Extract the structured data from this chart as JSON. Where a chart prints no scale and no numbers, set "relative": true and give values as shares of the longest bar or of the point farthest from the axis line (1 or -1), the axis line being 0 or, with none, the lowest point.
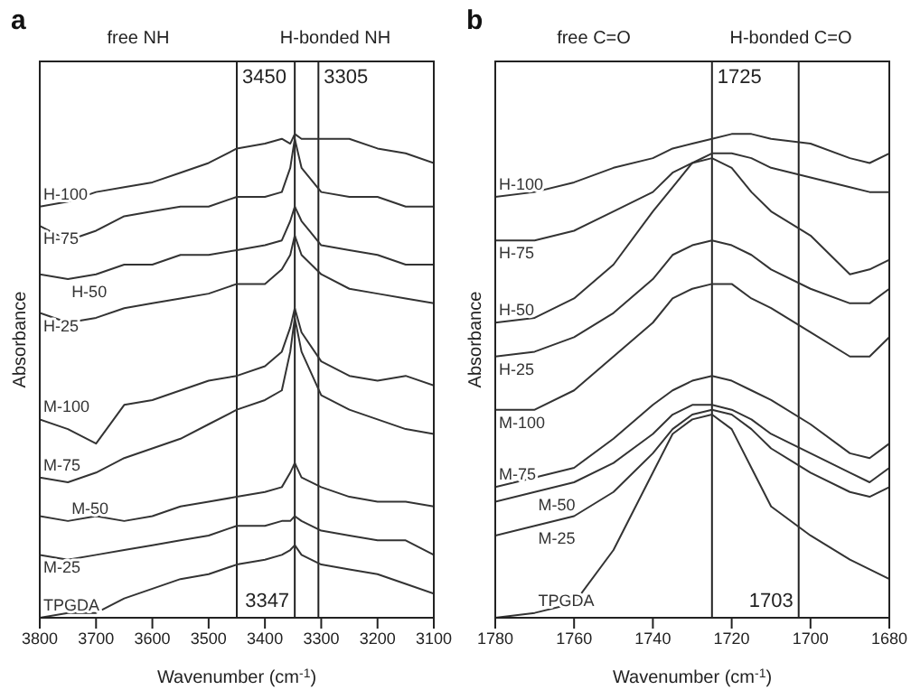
{
  "chart_data": [
    {
      "type": "line",
      "title": "a",
      "xlabel": "Wavenumber (cm$^{-1}$)",
      "ylabel": "Absorbance",
      "relative": true,
      "legend": false,
      "grid": false,
      "marker": "none",
      "line_style": "solid",
      "x": [
        3800,
        3750,
        3700,
        3650,
        3600,
        3550,
        3500,
        3450,
        3400,
        3370,
        3355,
        3347,
        3335,
        3300,
        3250,
        3200,
        3150,
        3100
      ],
      "xlim": [
        3800,
        3100
      ],
      "xticks": [
        3800,
        3700,
        3600,
        3500,
        3400,
        3300,
        3200,
        3100
      ],
      "series": [
        {
          "name": "H-100",
          "color": "#333333",
          "values": [
            0.85,
            0.86,
            0.88,
            0.89,
            0.9,
            0.92,
            0.94,
            0.97,
            0.98,
            0.99,
            0.98,
            1,
            0.99,
            0.99,
            0.99,
            0.97,
            0.96,
            0.94
          ]
        },
        {
          "name": "H-75",
          "color": "#333333",
          "values": [
            0.81,
            0.78,
            0.8,
            0.83,
            0.84,
            0.85,
            0.85,
            0.87,
            0.87,
            0.88,
            0.93,
            0.99,
            0.93,
            0.88,
            0.87,
            0.87,
            0.85,
            0.85
          ]
        },
        {
          "name": "H-50",
          "color": "#333333",
          "values": [
            0.71,
            0.7,
            0.71,
            0.73,
            0.73,
            0.75,
            0.75,
            0.76,
            0.77,
            0.78,
            0.82,
            0.85,
            0.82,
            0.77,
            0.76,
            0.75,
            0.73,
            0.73
          ]
        },
        {
          "name": "H-25",
          "color": "#333333",
          "values": [
            0.63,
            0.61,
            0.62,
            0.64,
            0.65,
            0.66,
            0.67,
            0.69,
            0.69,
            0.72,
            0.75,
            0.79,
            0.75,
            0.71,
            0.68,
            0.67,
            0.66,
            0.65
          ]
        },
        {
          "name": "M-100",
          "color": "#333333",
          "values": [
            0.41,
            0.39,
            0.36,
            0.44,
            0.45,
            0.47,
            0.49,
            0.5,
            0.52,
            0.55,
            0.6,
            0.64,
            0.59,
            0.53,
            0.5,
            0.49,
            0.5,
            0.48
          ]
        },
        {
          "name": "M-75",
          "color": "#333333",
          "values": [
            0.29,
            0.28,
            0.3,
            0.33,
            0.35,
            0.37,
            0.4,
            0.43,
            0.45,
            0.47,
            0.55,
            0.62,
            0.55,
            0.46,
            0.43,
            0.41,
            0.39,
            0.38
          ]
        },
        {
          "name": "M-50",
          "color": "#333333",
          "values": [
            0.21,
            0.2,
            0.21,
            0.2,
            0.21,
            0.23,
            0.24,
            0.25,
            0.26,
            0.27,
            0.3,
            0.32,
            0.29,
            0.27,
            0.25,
            0.24,
            0.24,
            0.23
          ]
        },
        {
          "name": "M-25",
          "color": "#333333",
          "values": [
            0.13,
            0.12,
            0.13,
            0.14,
            0.15,
            0.16,
            0.17,
            0.19,
            0.19,
            0.2,
            0.2,
            0.21,
            0.2,
            0.18,
            0.17,
            0.16,
            0.16,
            0.13
          ]
        },
        {
          "name": "TPGDA",
          "color": "#333333",
          "values": [
            0,
            0.01,
            0.01,
            0.04,
            0.06,
            0.08,
            0.09,
            0.11,
            0.12,
            0.13,
            0.14,
            0.15,
            0.13,
            0.11,
            0.1,
            0.09,
            0.07,
            0.05
          ]
        }
      ],
      "ref_lines": [
        {
          "axis": "x",
          "value": 3450,
          "label": "3450"
        },
        {
          "axis": "x",
          "value": 3347,
          "label": "3347"
        },
        {
          "axis": "x",
          "value": 3305,
          "label": "3305"
        }
      ],
      "annotations": [
        "free NH",
        "H-bonded NH"
      ]
    },
    {
      "type": "line",
      "title": "b",
      "xlabel": "Wavenumber (cm$^{-1}$)",
      "ylabel": "Absorbance",
      "relative": true,
      "legend": false,
      "grid": false,
      "marker": "none",
      "line_style": "solid",
      "x": [
        1780,
        1770,
        1760,
        1750,
        1740,
        1735,
        1730,
        1725,
        1720,
        1715,
        1710,
        1700,
        1690,
        1685,
        1680
      ],
      "xlim": [
        1780,
        1680
      ],
      "xticks": [
        1780,
        1760,
        1740,
        1720,
        1700,
        1680
      ],
      "series": [
        {
          "name": "H-100",
          "color": "#333333",
          "values": [
            0.87,
            0.88,
            0.9,
            0.93,
            0.95,
            0.97,
            0.98,
            0.99,
            1,
            1,
            0.99,
            0.98,
            0.95,
            0.94,
            0.96
          ]
        },
        {
          "name": "H-75",
          "color": "#333333",
          "values": [
            0.78,
            0.78,
            0.8,
            0.84,
            0.88,
            0.92,
            0.94,
            0.96,
            0.96,
            0.95,
            0.93,
            0.91,
            0.89,
            0.88,
            0.88
          ]
        },
        {
          "name": "H-50",
          "color": "#333333",
          "values": [
            0.61,
            0.62,
            0.66,
            0.73,
            0.84,
            0.89,
            0.94,
            0.95,
            0.93,
            0.88,
            0.84,
            0.79,
            0.71,
            0.72,
            0.74
          ]
        },
        {
          "name": "H-25",
          "color": "#333333",
          "values": [
            0.54,
            0.55,
            0.58,
            0.63,
            0.7,
            0.75,
            0.77,
            0.78,
            0.77,
            0.75,
            0.72,
            0.68,
            0.65,
            0.65,
            0.68
          ]
        },
        {
          "name": "M-100",
          "color": "#333333",
          "values": [
            0.43,
            0.43,
            0.47,
            0.54,
            0.61,
            0.66,
            0.68,
            0.69,
            0.69,
            0.66,
            0.64,
            0.59,
            0.54,
            0.54,
            0.58
          ]
        },
        {
          "name": "M-75",
          "color": "#333333",
          "values": [
            0.27,
            0.29,
            0.31,
            0.37,
            0.44,
            0.47,
            0.49,
            0.5,
            0.49,
            0.47,
            0.45,
            0.4,
            0.34,
            0.33,
            0.36
          ]
        },
        {
          "name": "M-50",
          "color": "#333333",
          "values": [
            0.24,
            0.26,
            0.28,
            0.32,
            0.38,
            0.42,
            0.44,
            0.44,
            0.43,
            0.41,
            0.38,
            0.34,
            0.3,
            0.28,
            0.31
          ]
        },
        {
          "name": "M-25",
          "color": "#333333",
          "values": [
            0.17,
            0.19,
            0.21,
            0.26,
            0.34,
            0.39,
            0.42,
            0.43,
            0.42,
            0.39,
            0.35,
            0.3,
            0.26,
            0.25,
            0.27
          ]
        },
        {
          "name": "TPGDA",
          "color": "#333333",
          "values": [
            0,
            0.01,
            0.03,
            0.14,
            0.3,
            0.38,
            0.41,
            0.42,
            0.39,
            0.31,
            0.23,
            0.17,
            0.12,
            0.1,
            0.08
          ]
        }
      ],
      "ref_lines": [
        {
          "axis": "x",
          "value": 1725,
          "label": "1725"
        },
        {
          "axis": "x",
          "value": 1703,
          "label": "1703"
        }
      ],
      "annotations": [
        "free C=O",
        "H-bonded C=O"
      ]
    }
  ]
}
